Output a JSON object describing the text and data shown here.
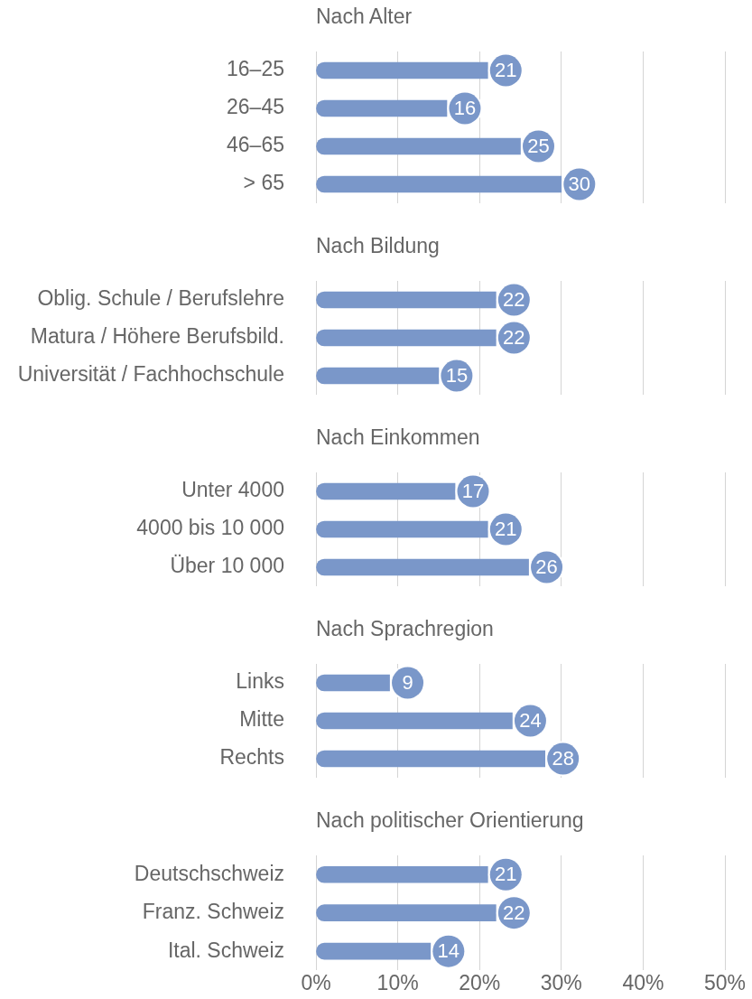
{
  "chart_data": [
    {
      "type": "bar",
      "orientation": "horizontal",
      "title": "Nach Alter",
      "categories": [
        "16–25",
        "26–45",
        "46–65",
        "> 65"
      ],
      "values": [
        21,
        16,
        25,
        30
      ],
      "color": "#7a97c9",
      "xlim": [
        0,
        50
      ],
      "xticks": [
        0,
        10,
        20,
        30,
        40,
        50
      ],
      "grid": "x",
      "data_labels": true,
      "tick_labels": "y"
    },
    {
      "type": "bar",
      "orientation": "horizontal",
      "title": "Nach Bildung",
      "categories": [
        "Oblig. Schule / Berufslehre",
        "Matura / Höhere Berufsbild.",
        "Universität / Fachhochschule"
      ],
      "values": [
        22,
        22,
        15
      ],
      "color": "#7a97c9",
      "xlim": [
        0,
        50
      ],
      "xticks": [
        0,
        10,
        20,
        30,
        40,
        50
      ],
      "grid": "x",
      "data_labels": true,
      "tick_labels": "y"
    },
    {
      "type": "bar",
      "orientation": "horizontal",
      "title": "Nach Einkommen",
      "categories": [
        "Unter 4000",
        "4000 bis 10 000",
        "Über 10 000"
      ],
      "values": [
        17,
        21,
        26
      ],
      "color": "#7a97c9",
      "xlim": [
        0,
        50
      ],
      "xticks": [
        0,
        10,
        20,
        30,
        40,
        50
      ],
      "grid": "x",
      "data_labels": true,
      "tick_labels": "y"
    },
    {
      "type": "bar",
      "orientation": "horizontal",
      "title": "Nach Sprachregion",
      "categories": [
        "Links",
        "Mitte",
        "Rechts"
      ],
      "values": [
        9,
        24,
        28
      ],
      "color": "#7a97c9",
      "xlim": [
        0,
        50
      ],
      "xticks": [
        0,
        10,
        20,
        30,
        40,
        50
      ],
      "grid": "x",
      "data_labels": true,
      "tick_labels": "y"
    },
    {
      "type": "bar",
      "orientation": "horizontal",
      "title": "Nach politischer Orientierung",
      "categories": [
        "Deutschschweiz",
        "Franz. Schweiz",
        "Ital. Schweiz"
      ],
      "values": [
        21,
        22,
        14
      ],
      "color": "#7a97c9",
      "xlim": [
        0,
        50
      ],
      "xticks": [
        {
          "value": 0,
          "label": "0%"
        },
        {
          "value": 10,
          "label": "10%"
        },
        {
          "value": 20,
          "label": "20%"
        },
        {
          "value": 30,
          "label": "30%"
        },
        {
          "value": 40,
          "label": "40%"
        },
        {
          "value": 50,
          "label": "50%"
        }
      ],
      "grid": "x",
      "data_labels": true
    }
  ]
}
